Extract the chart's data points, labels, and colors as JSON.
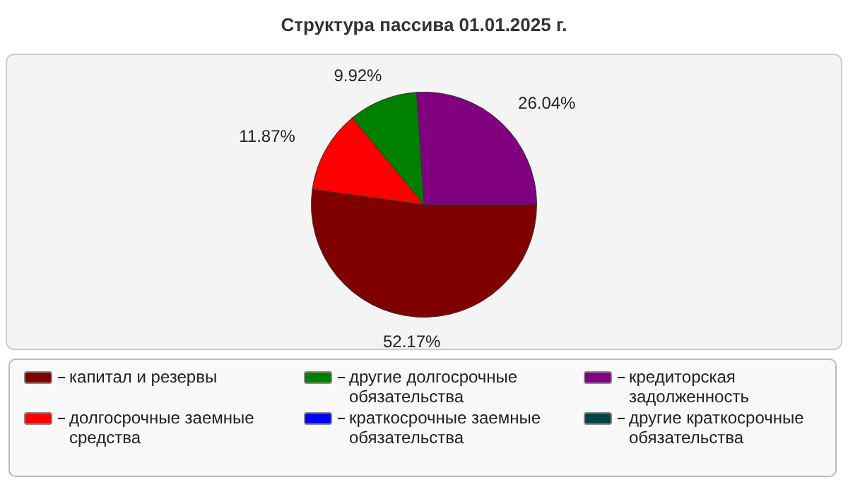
{
  "chart_data": {
    "type": "pie",
    "title": "Структура пассива 01.01.2025 г.",
    "categories": [
      "капитал и резервы",
      "долгосрочные заемные средства",
      "другие долгосрочные обязательства",
      "краткосрочные заемные обязательства",
      "кредиторская задолженность",
      "другие краткосрочные обязательства"
    ],
    "values": [
      52.17,
      11.87,
      9.92,
      0,
      26.04,
      0
    ],
    "value_labels": [
      "52.17%",
      "11.87%",
      "9.92%",
      null,
      "26.04%",
      null
    ],
    "colors": [
      "#800000",
      "#ff0000",
      "#008000",
      "#0000ff",
      "#800080",
      "#004545"
    ],
    "legend": "bottom"
  }
}
